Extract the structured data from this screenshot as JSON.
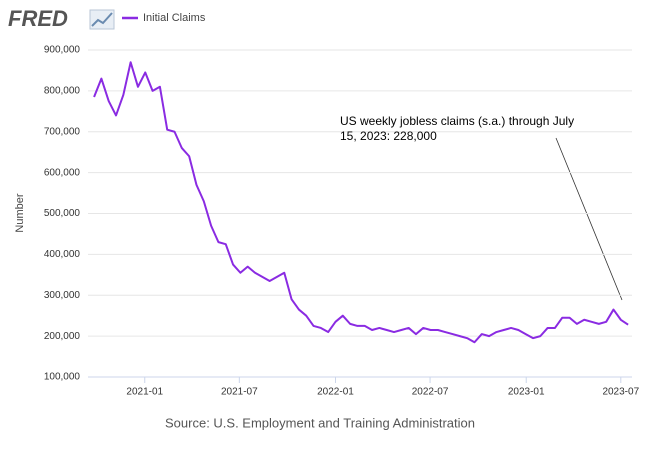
{
  "chart_data": {
    "type": "line",
    "logo": "FRED",
    "y_axis_label": "Number",
    "annotation": [
      "US weekly jobless claims (s.a.) through July",
      "15, 2023: 228,000"
    ],
    "source": "Source: U.S. Employment and Training Administration",
    "grid": true,
    "legend": "top-left",
    "x": [
      "2020-09-26",
      "2020-10-10",
      "2020-10-24",
      "2020-11-07",
      "2020-11-21",
      "2020-12-05",
      "2020-12-19",
      "2021-01-02",
      "2021-01-16",
      "2021-01-30",
      "2021-02-13",
      "2021-02-27",
      "2021-03-13",
      "2021-03-27",
      "2021-04-10",
      "2021-04-24",
      "2021-05-08",
      "2021-05-22",
      "2021-06-05",
      "2021-06-19",
      "2021-07-03",
      "2021-07-17",
      "2021-07-31",
      "2021-08-14",
      "2021-08-28",
      "2021-09-11",
      "2021-09-25",
      "2021-10-09",
      "2021-10-23",
      "2021-11-06",
      "2021-11-20",
      "2021-12-04",
      "2021-12-18",
      "2022-01-01",
      "2022-01-15",
      "2022-01-29",
      "2022-02-12",
      "2022-02-26",
      "2022-03-12",
      "2022-03-26",
      "2022-04-09",
      "2022-04-23",
      "2022-05-07",
      "2022-05-21",
      "2022-06-04",
      "2022-06-18",
      "2022-07-02",
      "2022-07-16",
      "2022-07-30",
      "2022-08-13",
      "2022-08-27",
      "2022-09-10",
      "2022-09-24",
      "2022-10-08",
      "2022-10-22",
      "2022-11-05",
      "2022-11-19",
      "2022-12-03",
      "2022-12-17",
      "2022-12-31",
      "2023-01-14",
      "2023-01-28",
      "2023-02-11",
      "2023-02-25",
      "2023-03-11",
      "2023-03-25",
      "2023-04-08",
      "2023-04-22",
      "2023-05-06",
      "2023-05-20",
      "2023-06-03",
      "2023-06-17",
      "2023-07-01",
      "2023-07-15"
    ],
    "series": [
      {
        "name": "Initial Claims",
        "color": "#8a2be2",
        "values": [
          785000,
          830000,
          775000,
          740000,
          790000,
          870000,
          810000,
          845000,
          800000,
          810000,
          705000,
          700000,
          660000,
          640000,
          570000,
          530000,
          470000,
          430000,
          425000,
          375000,
          355000,
          370000,
          355000,
          345000,
          335000,
          345000,
          355000,
          290000,
          265000,
          250000,
          225000,
          220000,
          210000,
          235000,
          250000,
          230000,
          225000,
          225000,
          215000,
          220000,
          215000,
          210000,
          215000,
          220000,
          205000,
          220000,
          215000,
          215000,
          210000,
          205000,
          200000,
          195000,
          185000,
          205000,
          200000,
          210000,
          215000,
          220000,
          215000,
          205000,
          195000,
          200000,
          220000,
          220000,
          245000,
          245000,
          230000,
          240000,
          235000,
          230000,
          235000,
          265000,
          240000,
          228000
        ]
      }
    ],
    "xlim": [
      "2020-09",
      "2023-08"
    ],
    "xticks": [
      "2021-01",
      "2021-07",
      "2022-01",
      "2022-07",
      "2023-01",
      "2023-07"
    ],
    "ylim": [
      100000,
      900000
    ],
    "yticks": [
      {
        "value": 100000,
        "label": "100,000"
      },
      {
        "value": 200000,
        "label": "200,000"
      },
      {
        "value": 300000,
        "label": "300,000"
      },
      {
        "value": 400000,
        "label": "400,000"
      },
      {
        "value": 500000,
        "label": "500,000"
      },
      {
        "value": 600000,
        "label": "600,000"
      },
      {
        "value": 700000,
        "label": "700,000"
      },
      {
        "value": 800000,
        "label": "800,000"
      },
      {
        "value": 900000,
        "label": "900,000"
      }
    ]
  }
}
